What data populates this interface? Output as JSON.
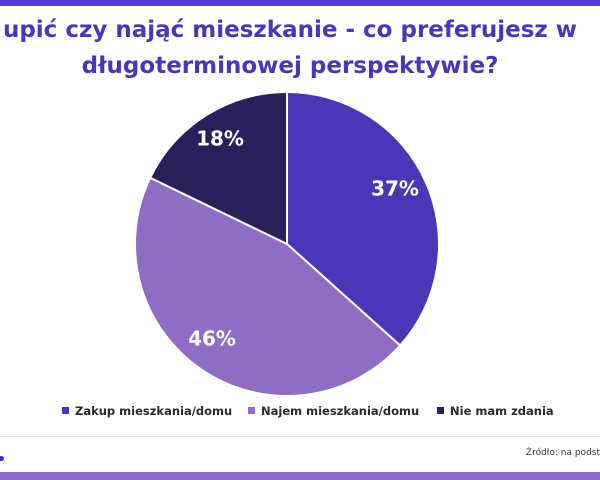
{
  "title_line1": "upić czy nająć mieszkanie - co preferujesz w",
  "title_line2": "długoterminowej perspektywie?",
  "source": "Źródło: na podst",
  "colors": {
    "zakup": "#4a36b6",
    "najem": "#8f6dc4",
    "brak": "#29205b",
    "accent": "#4b35b8"
  },
  "chart_data": {
    "type": "pie",
    "title": "",
    "categories": [
      "Zakup mieszkania/domu",
      "Najem mieszkania/domu",
      "Nie mam zdania"
    ],
    "values": [
      37,
      46,
      18
    ],
    "labels": [
      "37%",
      "46%",
      "18%"
    ],
    "legend_position": "bottom"
  }
}
